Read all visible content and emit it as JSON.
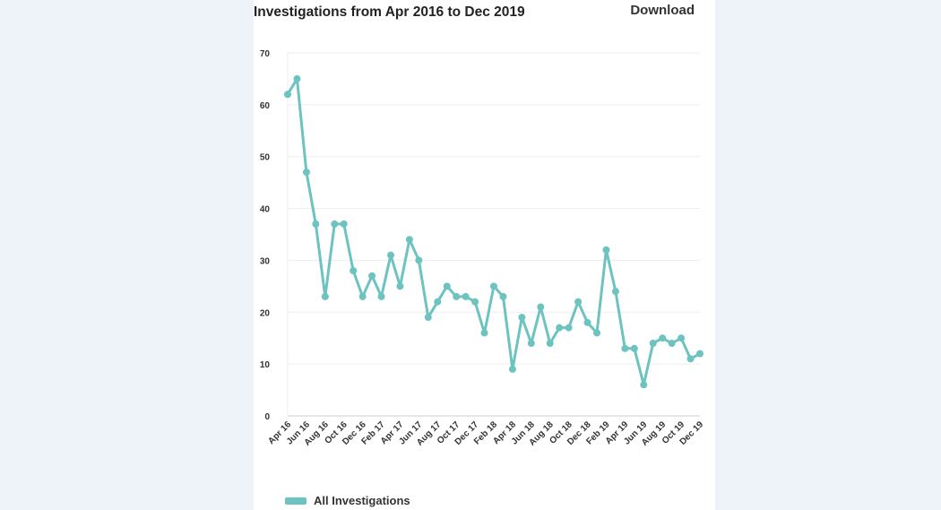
{
  "header": {
    "download_label": "Download"
  },
  "chart_data": {
    "type": "line",
    "title": "Investigations from Apr 2016 to Dec 2019",
    "xlabel": "",
    "ylabel": "",
    "ylim": [
      0,
      70
    ],
    "yticks": [
      0,
      10,
      20,
      30,
      40,
      50,
      60,
      70
    ],
    "grid": true,
    "legend_position": "bottom-left",
    "color": "#6cc3c0",
    "x": [
      "Apr 16",
      "May 16",
      "Jun 16",
      "Jul 16",
      "Aug 16",
      "Sep 16",
      "Oct 16",
      "Nov 16",
      "Dec 16",
      "Jan 17",
      "Feb 17",
      "Mar 17",
      "Apr 17",
      "May 17",
      "Jun 17",
      "Jul 17",
      "Aug 17",
      "Sep 17",
      "Oct 17",
      "Nov 17",
      "Dec 17",
      "Jan 18",
      "Feb 18",
      "Mar 18",
      "Apr 18",
      "May 18",
      "Jun 18",
      "Jul 18",
      "Aug 18",
      "Sep 18",
      "Oct 18",
      "Nov 18",
      "Dec 18",
      "Jan 19",
      "Feb 19",
      "Mar 19",
      "Apr 19",
      "May 19",
      "Jun 19",
      "Jul 19",
      "Aug 19",
      "Sep 19",
      "Oct 19",
      "Nov 19",
      "Dec 19"
    ],
    "xtick_labels": [
      "Apr 16",
      "Jun 16",
      "Aug 16",
      "Oct 16",
      "Dec 16",
      "Feb 17",
      "Apr 17",
      "Jun 17",
      "Aug 17",
      "Oct 17",
      "Dec 17",
      "Feb 18",
      "Apr 18",
      "Jun 18",
      "Aug 18",
      "Oct 18",
      "Dec 18",
      "Feb 19",
      "Apr 19",
      "Jun 19",
      "Aug 19",
      "Oct 19",
      "Dec 19"
    ],
    "series": [
      {
        "name": "All Investigations",
        "values": [
          62,
          65,
          47,
          37,
          23,
          37,
          37,
          28,
          23,
          27,
          23,
          31,
          25,
          34,
          30,
          19,
          22,
          25,
          23,
          23,
          22,
          16,
          25,
          23,
          9,
          19,
          14,
          21,
          14,
          17,
          17,
          22,
          18,
          16,
          32,
          24,
          13,
          13,
          6,
          14,
          15,
          14,
          15,
          11,
          12
        ]
      }
    ]
  }
}
